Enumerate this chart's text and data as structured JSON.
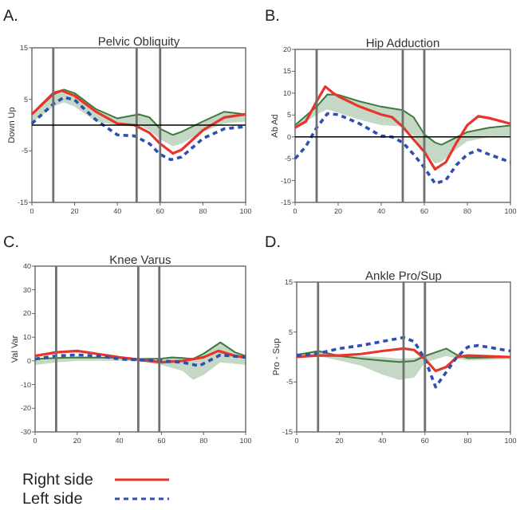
{
  "chart_data": [
    {
      "type": "line",
      "title": "Pelvic Obliquity",
      "ylabel": "Down Up",
      "annotations": [
        "A."
      ],
      "xlim": [
        0,
        100
      ],
      "xticks": [
        0,
        20,
        40,
        60,
        80,
        100
      ],
      "ylim": [
        -15,
        15
      ],
      "yticks": [
        -15,
        -5,
        5,
        15
      ],
      "legend": "bottom",
      "grid": false,
      "ref_lines": [
        {
          "axis": "x",
          "value": 10,
          "color": "#707070"
        },
        {
          "axis": "x",
          "value": 49,
          "color": "#707070"
        },
        {
          "axis": "x",
          "value": 60,
          "color": "#707070"
        },
        {
          "axis": "y",
          "value": 0,
          "color": "#000000"
        }
      ],
      "series": [
        {
          "color": "#3e7a3e",
          "line_style": "solid",
          "x": [
            0,
            10,
            15,
            20,
            30,
            40,
            50,
            55,
            60,
            66,
            70,
            80,
            90,
            100
          ],
          "values": [
            2.1,
            5.9,
            6.9,
            6.2,
            3.1,
            1.3,
            2.1,
            1.5,
            -0.7,
            -1.9,
            -1.3,
            0.7,
            2.6,
            2.1
          ],
          "lower": [
            0.5,
            3.6,
            4.4,
            3.6,
            0.7,
            0,
            0,
            -1,
            -2.8,
            -4.1,
            -3.6,
            -1.3,
            0.3,
            0.7
          ],
          "upper": [
            2.1,
            5.9,
            6.9,
            6.2,
            3.1,
            1.3,
            2.1,
            1.5,
            -0.7,
            -1.9,
            -1.3,
            0.7,
            2.6,
            2.1
          ]
        },
        {
          "name": "Right side",
          "color": "#e8352c",
          "line_style": "solid",
          "x": [
            0,
            10,
            14,
            20,
            30,
            40,
            48,
            55,
            60,
            66,
            70,
            80,
            90,
            100
          ],
          "values": [
            2.1,
            6.2,
            6.7,
            5.7,
            2.6,
            0.3,
            0,
            -1.5,
            -3.6,
            -5.5,
            -4.8,
            -1,
            1.5,
            2.1
          ]
        },
        {
          "name": "Left side",
          "color": "#2d4fb0",
          "line_style": "dashed",
          "x": [
            0,
            10,
            15,
            20,
            30,
            40,
            48,
            55,
            60,
            65,
            70,
            80,
            90,
            100
          ],
          "values": [
            0.3,
            4.1,
            5.4,
            4.9,
            1,
            -1.9,
            -2.1,
            -3.6,
            -5.7,
            -6.7,
            -6.2,
            -2.6,
            -0.7,
            -0.3
          ]
        }
      ]
    },
    {
      "type": "line",
      "title": "Hip Adduction",
      "ylabel": "Ab Ad",
      "annotations": [
        "B."
      ],
      "xlim": [
        0,
        100
      ],
      "xticks": [
        0,
        20,
        40,
        60,
        80,
        100
      ],
      "ylim": [
        -15,
        20
      ],
      "yticks": [
        -15,
        -10,
        -5,
        0,
        5,
        10,
        15,
        20
      ],
      "grid": false,
      "ref_lines": [
        {
          "axis": "x",
          "value": 10,
          "color": "#707070"
        },
        {
          "axis": "x",
          "value": 50,
          "color": "#707070"
        },
        {
          "axis": "x",
          "value": 60,
          "color": "#707070"
        },
        {
          "axis": "y",
          "value": 0,
          "color": "#000000"
        }
      ],
      "series": [
        {
          "color": "#3e7a3e",
          "line_style": "solid",
          "x": [
            0,
            10,
            15,
            20,
            30,
            40,
            50,
            55,
            60,
            65,
            68,
            75,
            80,
            90,
            100
          ],
          "values": [
            2.7,
            6.9,
            9.7,
            9.6,
            8.1,
            6.9,
            6.1,
            4.5,
            0.6,
            -1.3,
            -1.8,
            -0.1,
            1.1,
            2.1,
            2.6
          ],
          "lower": [
            1.7,
            5.1,
            6.3,
            5.5,
            3.9,
            2.7,
            2.4,
            0.2,
            -3.4,
            -6.1,
            -5.7,
            -2.8,
            -1,
            -0.1,
            0
          ],
          "upper": [
            2.7,
            6.9,
            9.7,
            9.6,
            8.1,
            6.9,
            6.1,
            4.5,
            0.6,
            -1.3,
            -1.8,
            -0.1,
            1.1,
            2.1,
            2.6
          ]
        },
        {
          "color": "#e8352c",
          "line_style": "solid",
          "x": [
            0,
            5,
            10,
            14,
            18,
            20,
            30,
            40,
            45,
            50,
            55,
            60,
            65,
            70,
            75,
            80,
            85,
            90,
            100
          ],
          "values": [
            2.1,
            3.5,
            8.1,
            11.5,
            9.9,
            9.3,
            6.9,
            5.1,
            4.5,
            2.3,
            -0.6,
            -3.4,
            -7.4,
            -5.8,
            -1.3,
            2.7,
            4.7,
            4.3,
            3
          ]
        },
        {
          "color": "#2d4fb0",
          "line_style": "dashed",
          "x": [
            0,
            5,
            10,
            15,
            20,
            30,
            40,
            45,
            50,
            55,
            60,
            65,
            70,
            75,
            80,
            85,
            90,
            100
          ],
          "values": [
            -5,
            -2.2,
            2.1,
            5.3,
            5.1,
            3,
            0.2,
            0,
            -1.3,
            -4,
            -7,
            -10.7,
            -9.9,
            -6.4,
            -4,
            -3,
            -4,
            -5.8
          ]
        }
      ]
    },
    {
      "type": "line",
      "title": "Knee Varus",
      "ylabel": "Val Var",
      "annotations": [
        "C."
      ],
      "xlim": [
        0,
        100
      ],
      "xticks": [
        0,
        20,
        40,
        60,
        80,
        100
      ],
      "ylim": [
        -30,
        40
      ],
      "yticks": [
        -30,
        -20,
        -10,
        0,
        10,
        20,
        30,
        40
      ],
      "grid": false,
      "ref_lines": [
        {
          "axis": "x",
          "value": 10,
          "color": "#707070"
        },
        {
          "axis": "x",
          "value": 49,
          "color": "#707070"
        },
        {
          "axis": "x",
          "value": 59,
          "color": "#707070"
        }
      ],
      "series": [
        {
          "color": "#3e7a3e",
          "line_style": "solid",
          "x": [
            0,
            10,
            20,
            40,
            50,
            60,
            65,
            70,
            75,
            80,
            88,
            95,
            100
          ],
          "values": [
            0.8,
            1.2,
            1.5,
            1.3,
            0.8,
            1,
            1.5,
            1.2,
            0.8,
            3,
            7.8,
            3.6,
            2.1
          ],
          "lower": [
            -1.7,
            -0.6,
            0,
            0,
            -0.2,
            -1.7,
            -3,
            -4.2,
            -8,
            -5.9,
            -0.6,
            -1.2,
            -1.7
          ],
          "upper": [
            0.8,
            1.2,
            1.5,
            1.3,
            0.8,
            1,
            1.5,
            1.2,
            0.8,
            3,
            7.8,
            3.6,
            2.1
          ]
        },
        {
          "color": "#e8352c",
          "line_style": "solid",
          "x": [
            0,
            10,
            20,
            30,
            40,
            50,
            60,
            70,
            80,
            87,
            95,
            100
          ],
          "values": [
            2.1,
            3.6,
            4.2,
            2.9,
            1.5,
            0.4,
            -0.6,
            0,
            1.5,
            4.2,
            2.1,
            1.5
          ]
        },
        {
          "color": "#2d4fb0",
          "line_style": "dashed",
          "x": [
            0,
            10,
            20,
            30,
            40,
            50,
            60,
            70,
            78,
            88,
            100
          ],
          "values": [
            0.8,
            2.1,
            2.5,
            2.1,
            0.8,
            0.4,
            0,
            -0.6,
            -2.1,
            2.5,
            1.5
          ]
        }
      ]
    },
    {
      "type": "line",
      "title": "Ankle Pro/Sup",
      "ylabel": "Pro - Sup",
      "annotations": [
        "D."
      ],
      "xlim": [
        0,
        100
      ],
      "xticks": [
        0,
        20,
        40,
        60,
        80,
        100
      ],
      "ylim": [
        -15,
        15
      ],
      "yticks": [
        -15,
        -5,
        5,
        15
      ],
      "grid": false,
      "ref_lines": [
        {
          "axis": "x",
          "value": 10,
          "color": "#707070"
        },
        {
          "axis": "x",
          "value": 50,
          "color": "#707070"
        },
        {
          "axis": "x",
          "value": 60,
          "color": "#707070"
        }
      ],
      "series": [
        {
          "color": "#3e7a3e",
          "line_style": "solid",
          "x": [
            0,
            10,
            20,
            30,
            40,
            48,
            55,
            60,
            70,
            75,
            80,
            100
          ],
          "values": [
            0.4,
            1.2,
            0.2,
            -0.3,
            -0.7,
            -1,
            -0.8,
            0.2,
            1.7,
            0.4,
            -0.2,
            0
          ],
          "lower": [
            0,
            0.2,
            -0.7,
            -1.7,
            -3.5,
            -4.6,
            -4.1,
            -1.1,
            0.2,
            -0.3,
            -0.7,
            -0.4
          ],
          "upper": [
            0.7,
            1.2,
            0.3,
            0.2,
            0,
            -0.3,
            -0.2,
            0.3,
            1.7,
            0.7,
            0,
            0
          ]
        },
        {
          "color": "#e8352c",
          "line_style": "solid",
          "x": [
            0,
            10,
            20,
            30,
            40,
            50,
            55,
            60,
            65,
            70,
            75,
            80,
            100
          ],
          "values": [
            0,
            0.3,
            0.3,
            0.6,
            1.2,
            1.7,
            1.4,
            -0.4,
            -2.8,
            -2,
            0,
            0.3,
            0
          ]
        },
        {
          "color": "#2d4fb0",
          "line_style": "dashed",
          "x": [
            0,
            10,
            20,
            30,
            40,
            50,
            55,
            60,
            65,
            70,
            75,
            80,
            85,
            100
          ],
          "values": [
            0.3,
            0.7,
            1.7,
            2.3,
            3.1,
            3.9,
            3.1,
            -0.4,
            -6,
            -3,
            0,
            2,
            2.3,
            1.2
          ]
        }
      ]
    }
  ]
}
